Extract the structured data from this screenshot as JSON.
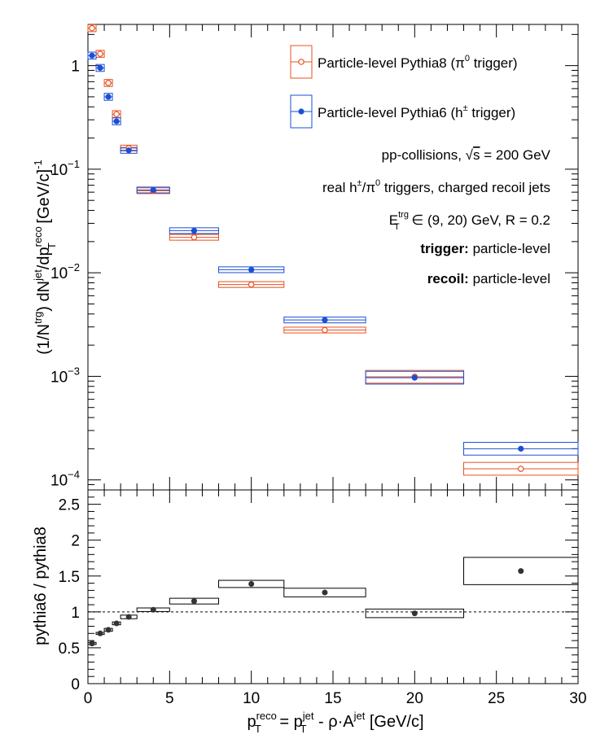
{
  "colors": {
    "pythia8": "#e8501e",
    "pythia6": "#1a4fd6",
    "ratio": "#333333"
  },
  "chart_data": [
    {
      "type": "scatter",
      "panel": "spectrum",
      "yscale": "log",
      "ylim": [
        8e-05,
        2.5
      ],
      "xlim": [
        0,
        30
      ],
      "ylabel": {
        "t1": "(1/N",
        "t1sup": "trg",
        "t2": ") dN",
        "t2sup": "jet",
        "t3": "/dp",
        "t3sup": "reco",
        "t3sub": "T",
        "t4": " [GeV/c]",
        "t4sup": "-1"
      },
      "yticks": [
        {
          "v": 1,
          "base": "1",
          "exp": ""
        },
        {
          "v": 0.1,
          "base": "10",
          "exp": "−1"
        },
        {
          "v": 0.01,
          "base": "10",
          "exp": "−2"
        },
        {
          "v": 0.001,
          "base": "10",
          "exp": "−3"
        },
        {
          "v": 0.0001,
          "base": "10",
          "exp": "−4"
        }
      ],
      "legend": [
        {
          "series": "pythia8",
          "name": "Particle-level Pythia8 (π",
          "sup": "0",
          "tail": " trigger)",
          "marker": "open-circle"
        },
        {
          "series": "pythia6",
          "name": "Particle-level Pythia6 (h",
          "sup": "±",
          "tail": " trigger)",
          "marker": "filled-circle"
        }
      ],
      "annotations": {
        "a1": "pp-collisions, ",
        "a1sqrt": "√",
        "a1s": "s",
        "a1tail": " = 200 GeV",
        "a2a": "real h",
        "a2b": "±",
        "a2c": "/π",
        "a2d": "0",
        "a2e": " triggers, charged recoil jets",
        "a3a": "E",
        "a3b": "trg",
        "a3c": "T",
        "a3d": " ∈ (9, 20) GeV, R = 0.2",
        "a4b": "trigger:",
        "a4": " particle-level",
        "a5b": "recoil:",
        "a5": " particle-level"
      },
      "series": [
        {
          "name": "pythia8",
          "points": [
            {
              "x": 0.25,
              "y": 2.3,
              "xlo": 0.0,
              "xhi": 0.5
            },
            {
              "x": 0.75,
              "y": 1.3,
              "xlo": 0.5,
              "xhi": 1.0
            },
            {
              "x": 1.25,
              "y": 0.68,
              "xlo": 1.0,
              "xhi": 1.5
            },
            {
              "x": 1.75,
              "y": 0.34,
              "xlo": 1.5,
              "xhi": 2.0
            },
            {
              "x": 2.5,
              "y": 0.16,
              "xlo": 2.0,
              "xhi": 3.0
            },
            {
              "x": 4.0,
              "y": 0.062,
              "xlo": 3.0,
              "xhi": 5.0
            },
            {
              "x": 6.5,
              "y": 0.022,
              "xlo": 5.0,
              "xhi": 8.0
            },
            {
              "x": 10.0,
              "y": 0.0077,
              "xlo": 8.0,
              "xhi": 12.0
            },
            {
              "x": 14.5,
              "y": 0.0028,
              "xlo": 12.0,
              "xhi": 17.0
            },
            {
              "x": 20.0,
              "y": 0.00099,
              "xlo": 17.0,
              "xhi": 23.0
            },
            {
              "x": 26.5,
              "y": 0.000128,
              "xlo": 23.0,
              "xhi": 30.0
            }
          ]
        },
        {
          "name": "pythia6",
          "points": [
            {
              "x": 0.25,
              "y": 1.25,
              "xlo": 0.0,
              "xhi": 0.5
            },
            {
              "x": 0.75,
              "y": 0.95,
              "xlo": 0.5,
              "xhi": 1.0
            },
            {
              "x": 1.25,
              "y": 0.5,
              "xlo": 1.0,
              "xhi": 1.5
            },
            {
              "x": 1.75,
              "y": 0.29,
              "xlo": 1.5,
              "xhi": 2.0
            },
            {
              "x": 2.5,
              "y": 0.152,
              "xlo": 2.0,
              "xhi": 3.0
            },
            {
              "x": 4.0,
              "y": 0.063,
              "xlo": 3.0,
              "xhi": 5.0
            },
            {
              "x": 6.5,
              "y": 0.0255,
              "xlo": 5.0,
              "xhi": 8.0
            },
            {
              "x": 10.0,
              "y": 0.0107,
              "xlo": 8.0,
              "xhi": 12.0
            },
            {
              "x": 14.5,
              "y": 0.0035,
              "xlo": 12.0,
              "xhi": 17.0
            },
            {
              "x": 20.0,
              "y": 0.00097,
              "xlo": 17.0,
              "xhi": 23.0
            },
            {
              "x": 26.5,
              "y": 0.0002,
              "xlo": 23.0,
              "xhi": 30.0
            }
          ]
        }
      ]
    },
    {
      "type": "scatter",
      "panel": "ratio",
      "xlim": [
        0,
        30
      ],
      "ylim": [
        0,
        2.7
      ],
      "ylabel": "pythia6 / pythia8",
      "xlabel": {
        "p": "p",
        "s1": "reco",
        "b1": "T",
        "eq": " = p",
        "s2": "jet",
        "b2": "T",
        "tail": " - ρ·A",
        "s3": "jet",
        "unit": " [GeV/c]"
      },
      "reference_line": 1,
      "yticks": [
        "0",
        "0.5",
        "1",
        "1.5",
        "2",
        "2.5"
      ],
      "xticks": [
        "0",
        "5",
        "10",
        "15",
        "20",
        "25",
        "30"
      ],
      "points": [
        {
          "x": 0.25,
          "y": 0.56,
          "xlo": 0.0,
          "xhi": 0.5,
          "err": 0.015
        },
        {
          "x": 0.75,
          "y": 0.7,
          "xlo": 0.5,
          "xhi": 1.0,
          "err": 0.015
        },
        {
          "x": 1.25,
          "y": 0.75,
          "xlo": 1.0,
          "xhi": 1.5,
          "err": 0.02
        },
        {
          "x": 1.75,
          "y": 0.84,
          "xlo": 1.5,
          "xhi": 2.0,
          "err": 0.02
        },
        {
          "x": 2.5,
          "y": 0.93,
          "xlo": 2.0,
          "xhi": 3.0,
          "err": 0.025
        },
        {
          "x": 4.0,
          "y": 1.03,
          "xlo": 3.0,
          "xhi": 5.0,
          "err": 0.025
        },
        {
          "x": 6.5,
          "y": 1.15,
          "xlo": 5.0,
          "xhi": 8.0,
          "err": 0.04
        },
        {
          "x": 10.0,
          "y": 1.39,
          "xlo": 8.0,
          "xhi": 12.0,
          "err": 0.05
        },
        {
          "x": 14.5,
          "y": 1.27,
          "xlo": 12.0,
          "xhi": 17.0,
          "err": 0.06
        },
        {
          "x": 20.0,
          "y": 0.98,
          "xlo": 17.0,
          "xhi": 23.0,
          "err": 0.06
        },
        {
          "x": 26.5,
          "y": 1.57,
          "xlo": 23.0,
          "xhi": 30.0,
          "err": 0.19
        }
      ]
    }
  ]
}
